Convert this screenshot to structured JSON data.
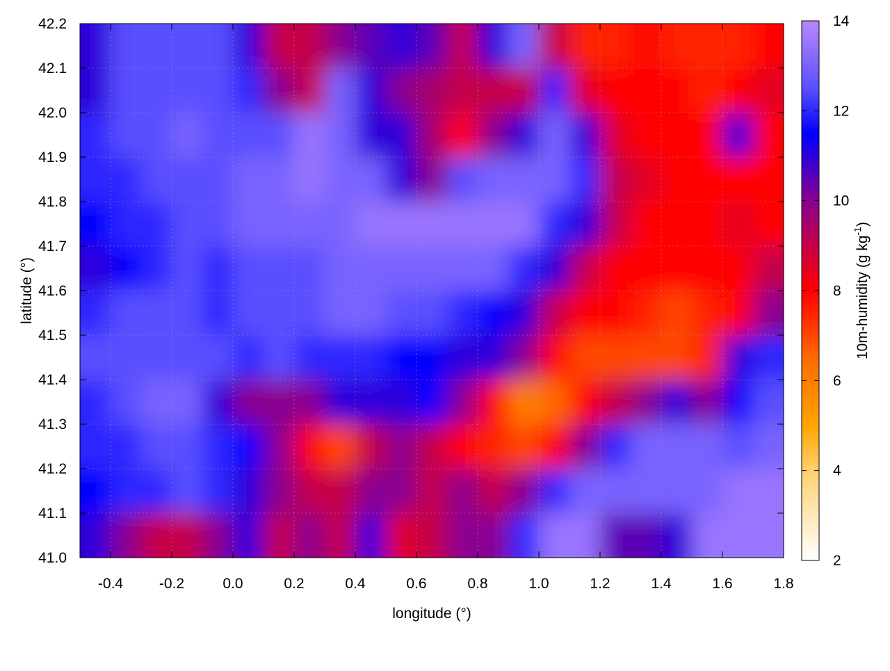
{
  "chart_data": {
    "type": "heatmap",
    "title": "",
    "xlabel": "longitude (°)",
    "ylabel": "latitude (°)",
    "xlim": [
      -0.5,
      1.8
    ],
    "ylim": [
      41.0,
      42.2
    ],
    "xticks": [
      "-0.4",
      "-0.2",
      "0.0",
      "0.2",
      "0.4",
      "0.6",
      "0.8",
      "1.0",
      "1.2",
      "1.4",
      "1.6",
      "1.8"
    ],
    "yticks": [
      "41.0",
      "41.1",
      "41.2",
      "41.3",
      "41.4",
      "41.5",
      "41.6",
      "41.7",
      "41.8",
      "41.9",
      "42.0",
      "42.1",
      "42.2"
    ],
    "grid": true,
    "colorbar": {
      "label_prefix": "10m-humidity (g kg",
      "label_sup": "-1",
      "label_suffix": ")",
      "range": [
        2,
        14
      ],
      "ticks": [
        "2",
        "4",
        "6",
        "8",
        "10",
        "12",
        "14"
      ],
      "palette": [
        [
          2,
          "#ffffff"
        ],
        [
          4,
          "#ffd070"
        ],
        [
          5,
          "#ffa500"
        ],
        [
          6.5,
          "#ff6a00"
        ],
        [
          8,
          "#ff0000"
        ],
        [
          10,
          "#8a0090"
        ],
        [
          11.5,
          "#0000ff"
        ],
        [
          12.5,
          "#5a50ff"
        ],
        [
          14,
          "#b888ff"
        ]
      ]
    },
    "lon": [
      -0.45,
      -0.35,
      -0.25,
      -0.15,
      -0.05,
      0.05,
      0.15,
      0.25,
      0.35,
      0.45,
      0.55,
      0.65,
      0.75,
      0.85,
      0.95,
      1.05,
      1.15,
      1.25,
      1.35,
      1.45,
      1.55,
      1.65,
      1.75
    ],
    "lat": [
      42.15,
      42.05,
      41.95,
      41.85,
      41.75,
      41.65,
      41.55,
      41.45,
      41.35,
      41.25,
      41.15,
      41.05
    ],
    "values": [
      [
        11,
        12.5,
        12.5,
        12.5,
        12.5,
        11,
        9,
        9,
        10,
        10.5,
        11,
        10.5,
        9,
        11,
        13,
        9,
        7.5,
        7.5,
        8,
        7.5,
        7.5,
        7.5,
        8
      ],
      [
        11,
        12.5,
        12.5,
        12.5,
        12.5,
        12,
        10,
        9,
        13,
        11,
        10,
        9.5,
        9,
        9,
        9,
        12,
        8.5,
        8,
        8,
        8,
        7.5,
        8,
        8.5
      ],
      [
        12,
        12.5,
        12.5,
        13,
        12.5,
        12.5,
        12.5,
        13.5,
        13,
        11,
        11,
        9.5,
        8,
        10,
        11,
        13,
        11,
        8.5,
        8,
        8,
        8,
        11,
        8
      ],
      [
        12,
        12,
        12.5,
        12.5,
        12.5,
        13,
        13,
        13.5,
        13,
        13,
        11,
        10,
        12.5,
        13,
        13,
        13,
        12,
        9,
        8.5,
        8,
        8,
        8,
        8
      ],
      [
        11.5,
        12,
        12,
        12.5,
        12.5,
        13,
        13,
        13,
        13,
        13.5,
        13.5,
        13.5,
        13.5,
        13.5,
        13.5,
        12,
        11,
        9,
        8,
        8,
        8,
        8.5,
        8
      ],
      [
        11,
        11.5,
        12,
        12.5,
        12,
        12.5,
        12.5,
        12.5,
        13,
        13,
        13,
        13,
        13,
        13,
        12,
        11,
        9,
        8,
        8,
        8,
        8,
        8,
        9
      ],
      [
        12,
        12.5,
        12.5,
        12.5,
        12,
        12.5,
        12.5,
        12.5,
        13,
        13,
        12.5,
        12.5,
        12,
        11.5,
        11,
        9,
        8,
        8,
        7.5,
        7,
        7.5,
        8,
        10
      ],
      [
        12.5,
        12.5,
        12.5,
        12.5,
        12.5,
        12,
        12.5,
        12,
        12,
        12,
        11.5,
        11.5,
        11,
        11,
        10,
        8,
        7,
        7,
        7,
        7,
        7.5,
        11,
        12
      ],
      [
        12,
        12.5,
        13,
        13,
        11,
        10,
        10,
        10,
        11,
        11,
        11,
        11.5,
        10,
        8,
        6,
        6.5,
        8,
        9,
        10,
        11,
        10,
        11.5,
        12.5
      ],
      [
        12,
        12,
        12.5,
        12.5,
        12,
        11.5,
        10,
        8,
        7,
        9,
        10,
        9,
        8,
        7.5,
        7,
        8,
        10,
        12,
        13,
        13,
        13,
        12.5,
        13
      ],
      [
        11.5,
        12,
        12,
        12.5,
        12,
        11,
        10,
        9,
        9,
        10,
        10,
        9,
        10,
        9,
        10,
        12,
        13,
        13,
        13,
        13,
        13,
        13.5,
        13.5
      ],
      [
        11,
        10,
        9,
        9,
        10,
        11,
        9,
        10,
        9,
        11,
        8.5,
        9,
        10,
        10,
        12,
        13.5,
        13.5,
        10.5,
        10.5,
        11,
        13.5,
        13.5,
        13.5
      ]
    ]
  }
}
